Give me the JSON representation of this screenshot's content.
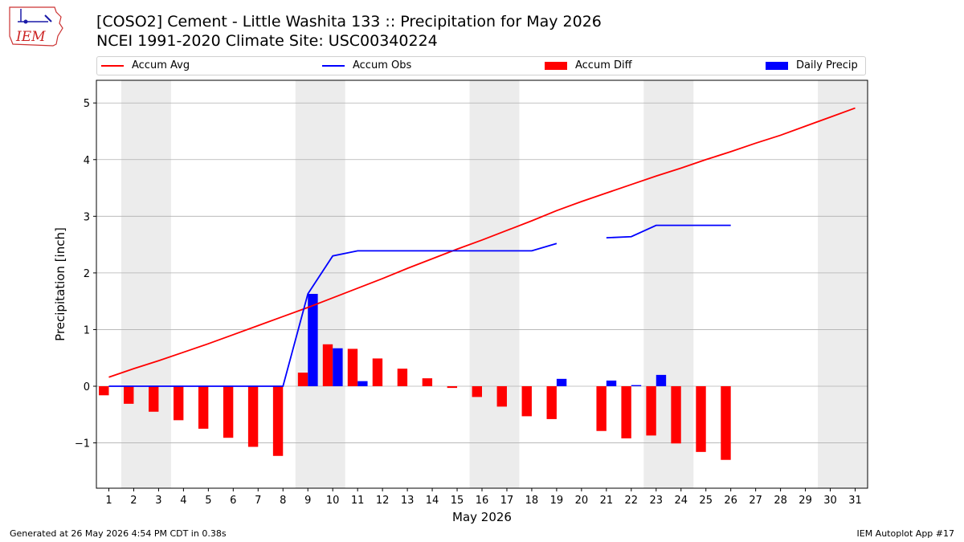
{
  "header": {
    "title_line1": "[COSO2] Cement - Little Washita 133 :: Precipitation for May 2026",
    "title_line2": "NCEI 1991-2020 Climate Site: USC00340224",
    "logo_text": "IEM"
  },
  "footer": {
    "generated": "Generated at 26 May 2026 4:54 PM CDT in 0.38s",
    "app": "IEM Autoplot App #17"
  },
  "chart_data": {
    "type": "bar",
    "xlabel": "May 2026",
    "ylabel": "Precipitation [inch]",
    "xlim": [
      0.5,
      31.5
    ],
    "ylim": [
      -1.8,
      5.4
    ],
    "yticks": [
      -1,
      0,
      1,
      2,
      3,
      4,
      5
    ],
    "ytick_labels": [
      "−1",
      "0",
      "1",
      "2",
      "3",
      "4",
      "5"
    ],
    "x": [
      1,
      2,
      3,
      4,
      5,
      6,
      7,
      8,
      9,
      10,
      11,
      12,
      13,
      14,
      15,
      16,
      17,
      18,
      19,
      20,
      21,
      22,
      23,
      24,
      25,
      26,
      27,
      28,
      29,
      30,
      31
    ],
    "grid": "horizontal",
    "legend_position": "top",
    "weekend_shading": [
      [
        1.5,
        3.5
      ],
      [
        8.5,
        10.5
      ],
      [
        15.5,
        17.5
      ],
      [
        22.5,
        24.5
      ],
      [
        29.5,
        31.5
      ]
    ],
    "colors": {
      "avg": "#ff0000",
      "obs": "#0000ff",
      "diff": "#ff0000",
      "daily": "#0000ff",
      "shade": "#ececec",
      "grid": "#b0b0b0"
    },
    "series": [
      {
        "name": "Accum Avg",
        "kind": "line",
        "values": [
          0.16,
          0.31,
          0.45,
          0.6,
          0.75,
          0.91,
          1.07,
          1.23,
          1.39,
          1.56,
          1.73,
          1.9,
          2.08,
          2.25,
          2.42,
          2.58,
          2.75,
          2.92,
          3.1,
          3.26,
          3.41,
          3.56,
          3.71,
          3.85,
          4.0,
          4.14,
          4.29,
          4.43,
          4.59,
          4.75,
          4.91
        ]
      },
      {
        "name": "Accum Obs",
        "kind": "line",
        "values": [
          0,
          0,
          0,
          0,
          0,
          0,
          0,
          0,
          1.63,
          2.3,
          2.39,
          2.39,
          2.39,
          2.39,
          2.39,
          2.39,
          2.39,
          2.39,
          2.52,
          null,
          2.62,
          2.64,
          2.84,
          2.84,
          2.84,
          2.84,
          null,
          null,
          null,
          null,
          null
        ]
      },
      {
        "name": "Accum Diff",
        "kind": "bar",
        "values": [
          -0.16,
          -0.31,
          -0.45,
          -0.6,
          -0.75,
          -0.91,
          -1.07,
          -1.23,
          0.24,
          0.74,
          0.66,
          0.49,
          0.31,
          0.14,
          -0.03,
          -0.19,
          -0.36,
          -0.53,
          -0.58,
          null,
          -0.79,
          -0.92,
          -0.87,
          -1.01,
          -1.16,
          -1.3,
          null,
          null,
          null,
          null,
          null
        ]
      },
      {
        "name": "Daily Precip",
        "kind": "bar",
        "values": [
          0,
          0,
          0,
          0,
          0,
          0,
          0,
          0,
          1.63,
          0.67,
          0.09,
          0,
          0,
          0,
          0,
          0,
          0,
          0,
          0.13,
          null,
          0.1,
          0.02,
          0.2,
          0,
          0,
          0,
          null,
          null,
          null,
          null,
          null
        ]
      }
    ]
  }
}
